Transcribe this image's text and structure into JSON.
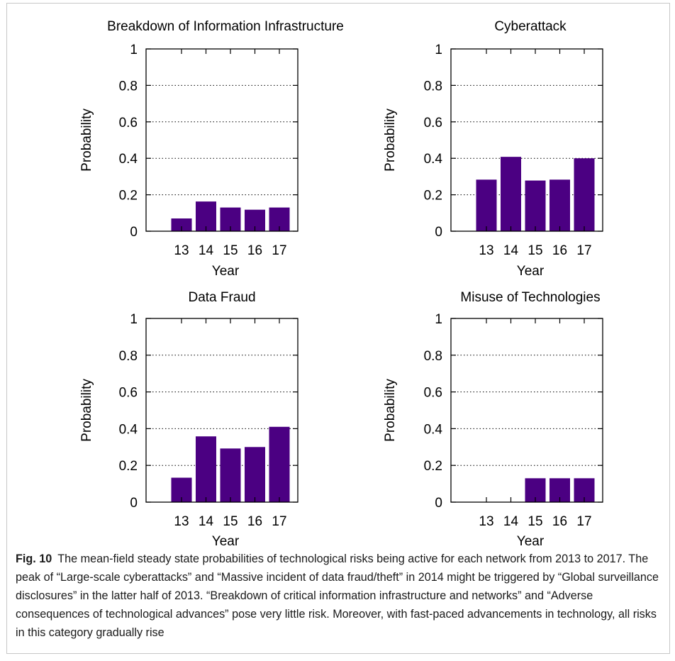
{
  "chart_data": [
    {
      "type": "bar",
      "title": "Breakdown of Information Infrastructure",
      "xlabel": "Year",
      "ylabel": "Probability",
      "categories": [
        "13",
        "14",
        "15",
        "16",
        "17"
      ],
      "values": [
        0.07,
        0.163,
        0.13,
        0.118,
        0.13
      ],
      "ylim": [
        0,
        1
      ],
      "yticks": [
        "0",
        "0.2",
        "0.4",
        "0.6",
        "0.8",
        "1"
      ],
      "grid": "horizontal dotted"
    },
    {
      "type": "bar",
      "title": "Cyberattack",
      "xlabel": "Year",
      "ylabel": "Probability",
      "categories": [
        "13",
        "14",
        "15",
        "16",
        "17"
      ],
      "values": [
        0.283,
        0.408,
        0.278,
        0.283,
        0.4
      ],
      "ylim": [
        0,
        1
      ],
      "yticks": [
        "0",
        "0.2",
        "0.4",
        "0.6",
        "0.8",
        "1"
      ],
      "grid": "horizontal dotted"
    },
    {
      "type": "bar",
      "title": "Data Fraud",
      "xlabel": "Year",
      "ylabel": "Probability",
      "categories": [
        "13",
        "14",
        "15",
        "16",
        "17"
      ],
      "values": [
        0.133,
        0.358,
        0.292,
        0.3,
        0.41
      ],
      "ylim": [
        0,
        1
      ],
      "yticks": [
        "0",
        "0.2",
        "0.4",
        "0.6",
        "0.8",
        "1"
      ],
      "grid": "horizontal dotted"
    },
    {
      "type": "bar",
      "title": "Misuse of Technologies",
      "xlabel": "Year",
      "ylabel": "Probability",
      "categories": [
        "13",
        "14",
        "15",
        "16",
        "17"
      ],
      "values": [
        0,
        0,
        0.13,
        0.13,
        0.13
      ],
      "ylim": [
        0,
        1
      ],
      "yticks": [
        "0",
        "0.2",
        "0.4",
        "0.6",
        "0.8",
        "1"
      ],
      "grid": "horizontal dotted"
    }
  ],
  "colors": {
    "bar": "#4b0082",
    "axis": "#000000",
    "grid": "#000000"
  },
  "caption": {
    "label": "Fig. 10",
    "text": "The mean-field steady state probabilities of technological risks being active for each network from 2013 to 2017. The peak of “Large-scale cyberattacks” and “Massive incident of data fraud/theft” in 2014 might be triggered by “Global surveillance disclosures” in the latter half of 2013. “Breakdown of critical information infrastructure and networks” and “Adverse consequences of technological advances” pose very little risk. Moreover, with fast-paced advancements in technology, all risks in this category gradually rise"
  }
}
